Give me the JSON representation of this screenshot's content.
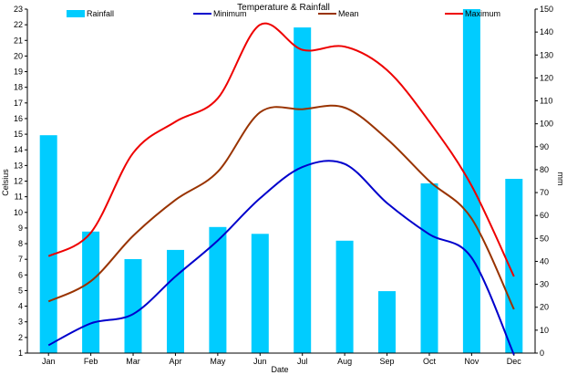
{
  "chart_data": {
    "type": "bar+line",
    "title": "Temperature & Rainfall",
    "xlabel": "Date",
    "ylabel_left": "Celsius",
    "ylabel_right": "mm",
    "ylim_left": [
      1,
      23
    ],
    "ylim_right": [
      0,
      150
    ],
    "left_ticks": [
      1,
      2,
      3,
      4,
      5,
      6,
      7,
      8,
      9,
      10,
      11,
      12,
      13,
      14,
      15,
      16,
      17,
      18,
      19,
      20,
      21,
      22,
      23
    ],
    "right_ticks": [
      0,
      10,
      20,
      30,
      40,
      50,
      60,
      70,
      80,
      90,
      100,
      110,
      120,
      130,
      140,
      150
    ],
    "categories": [
      "Jan",
      "Feb",
      "Mar",
      "Apr",
      "May",
      "Jun",
      "Jul",
      "Aug",
      "Sep",
      "Oct",
      "Nov",
      "Dec"
    ],
    "bars": {
      "name": "Rainfall",
      "axis": "right",
      "color": "#00ccff",
      "values": [
        95,
        53,
        41,
        45,
        55,
        52,
        142,
        49,
        27,
        74,
        150,
        76
      ]
    },
    "lines": [
      {
        "name": "Minimum",
        "axis": "left",
        "color": "#0000cc",
        "values": [
          1.5,
          2.9,
          3.5,
          5.9,
          8.2,
          10.9,
          12.9,
          13.1,
          10.6,
          8.6,
          7.1,
          0.9
        ]
      },
      {
        "name": "Mean",
        "axis": "left",
        "color": "#993300",
        "values": [
          4.3,
          5.6,
          8.5,
          10.8,
          12.6,
          16.4,
          16.6,
          16.7,
          14.7,
          12.0,
          9.6,
          3.8
        ]
      },
      {
        "name": "Maximum",
        "axis": "left",
        "color": "#ee0000",
        "values": [
          7.2,
          8.7,
          13.8,
          15.8,
          17.3,
          22.0,
          20.4,
          20.6,
          19.1,
          15.8,
          11.7,
          5.9
        ]
      }
    ],
    "legend_placement": "top",
    "grid": false
  }
}
